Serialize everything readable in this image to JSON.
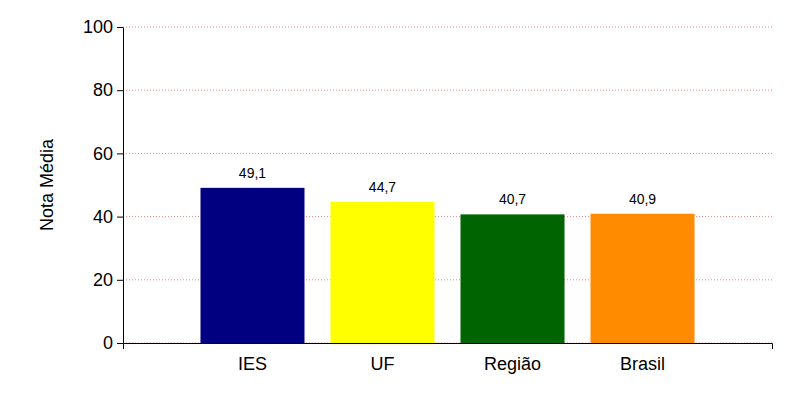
{
  "chart_data": {
    "type": "bar",
    "y_label": "Nota Média",
    "categories": [
      "IES",
      "UF",
      "Região",
      "Brasil"
    ],
    "values": [
      49.1,
      44.7,
      40.7,
      40.9
    ],
    "value_labels": [
      "49,1",
      "44,7",
      "40,7",
      "40,9"
    ],
    "colors": [
      "#000080",
      "#ffff00",
      "#006400",
      "#ff8c00"
    ],
    "ylim": [
      0,
      100
    ],
    "yticks": [
      0,
      20,
      40,
      60,
      80,
      100
    ],
    "grid": true,
    "data_labels": true
  }
}
